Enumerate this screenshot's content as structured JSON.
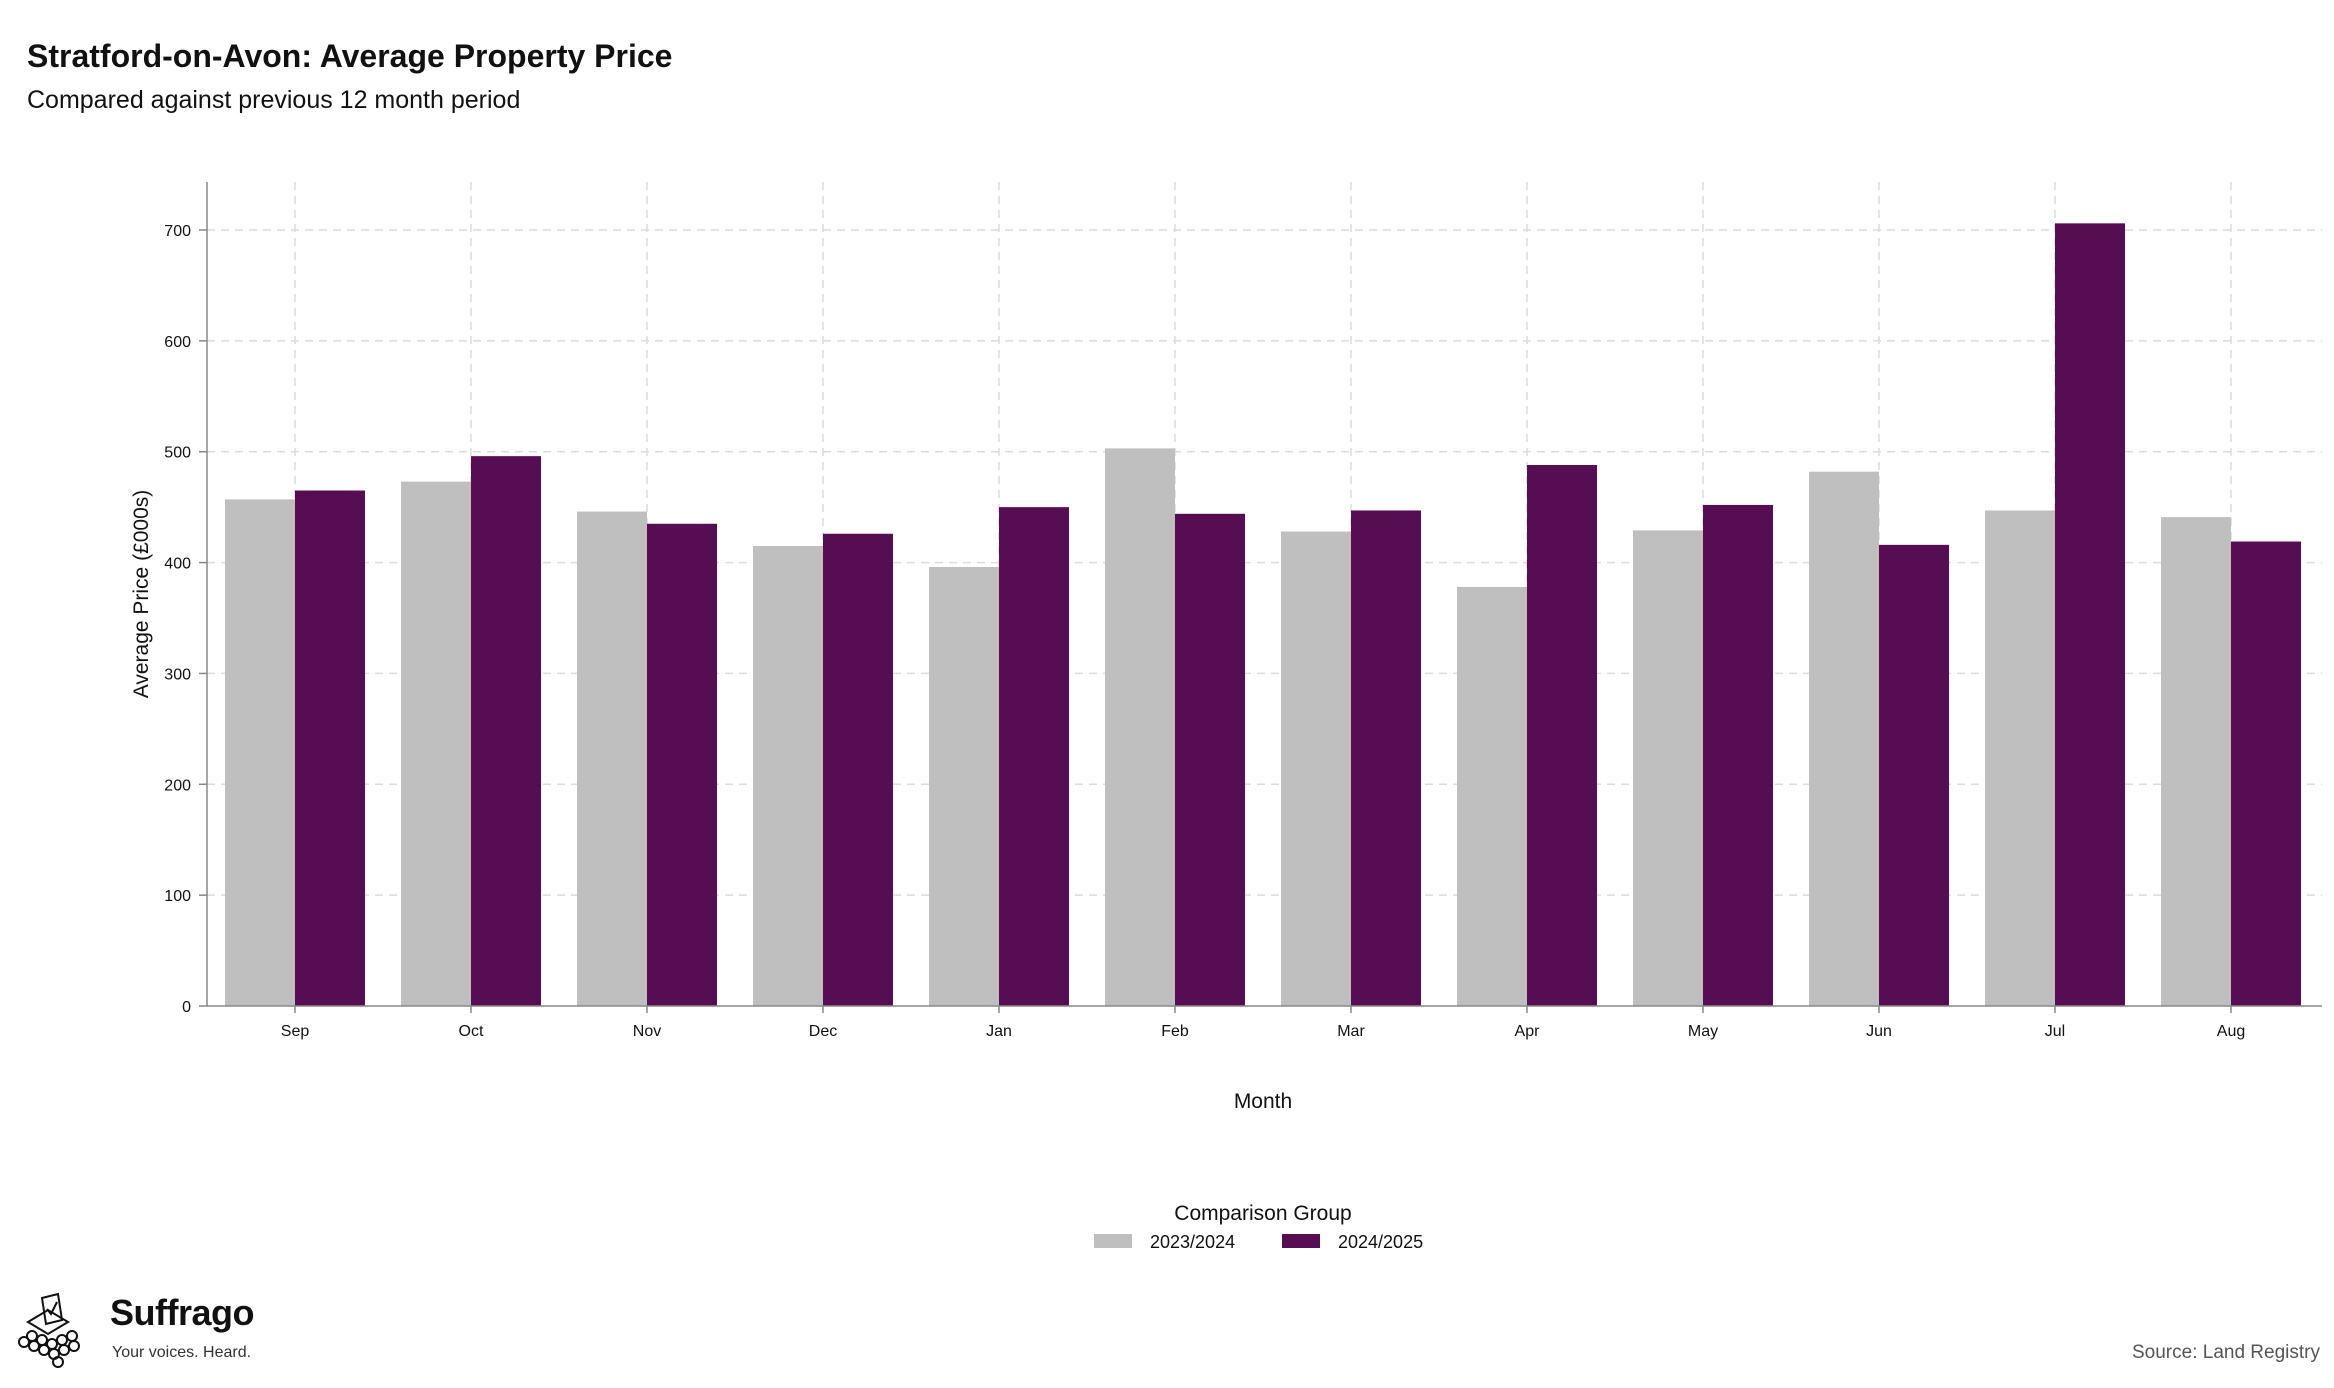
{
  "header": {
    "title": "Stratford-on-Avon: Average Property Price",
    "subtitle": "Compared against previous 12 month period"
  },
  "chart_data": {
    "type": "bar",
    "categories": [
      "Sep",
      "Oct",
      "Nov",
      "Dec",
      "Jan",
      "Feb",
      "Mar",
      "Apr",
      "May",
      "Jun",
      "Jul",
      "Aug"
    ],
    "series": [
      {
        "name": "2023/2024",
        "color": "#bfbfbf",
        "values": [
          457,
          473,
          446,
          415,
          396,
          503,
          428,
          378,
          429,
          482,
          447,
          441
        ]
      },
      {
        "name": "2024/2025",
        "color": "#560d51",
        "values": [
          465,
          496,
          435,
          426,
          450,
          444,
          447,
          488,
          452,
          416,
          706,
          419
        ]
      }
    ],
    "xlabel": "Month",
    "ylabel": "Average Price (£000s)",
    "ylim": [
      0,
      700
    ],
    "yticks": [
      0,
      100,
      200,
      300,
      400,
      500,
      600,
      700
    ],
    "grid": true,
    "legend": {
      "title": "Comparison Group",
      "position": "bottom-center"
    }
  },
  "branding": {
    "name": "Suffrago",
    "tagline": "Your voices. Heard."
  },
  "source": "Source: Land Registry"
}
